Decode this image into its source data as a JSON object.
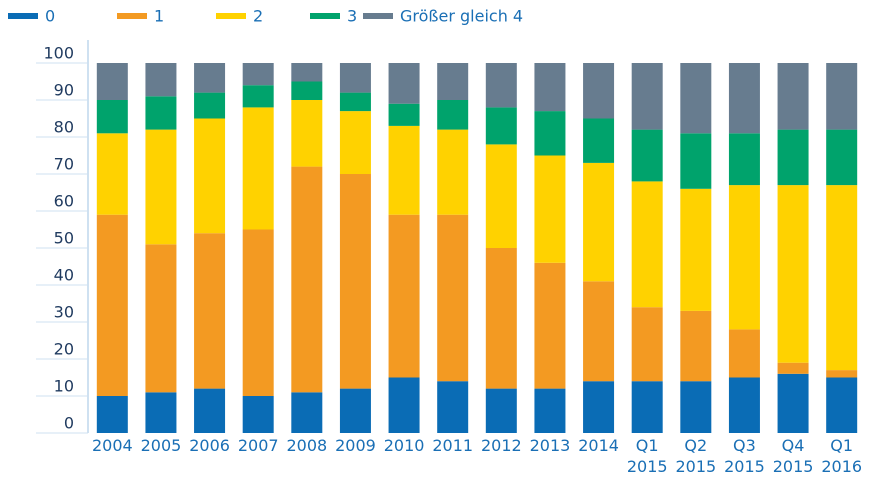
{
  "chart_data": {
    "type": "stacked_bar",
    "categories": [
      "2004",
      "2005",
      "2006",
      "2007",
      "2008",
      "2009",
      "2010",
      "2011",
      "2012",
      "2013",
      "2014",
      "Q1\n2015",
      "Q2\n2015",
      "Q3\n2015",
      "Q4\n2015",
      "Q1\n2016"
    ],
    "series": [
      {
        "name": "0",
        "color": "#0a6cb5",
        "values": [
          10,
          11,
          12,
          10,
          11,
          12,
          15,
          14,
          12,
          12,
          14,
          14,
          14,
          15,
          16,
          15
        ]
      },
      {
        "name": "1",
        "color": "#f39a22",
        "values": [
          49,
          40,
          42,
          45,
          61,
          58,
          44,
          45,
          38,
          34,
          27,
          20,
          19,
          13,
          3,
          2
        ]
      },
      {
        "name": "2",
        "color": "#ffd200",
        "values": [
          22,
          31,
          31,
          33,
          18,
          17,
          24,
          23,
          28,
          29,
          32,
          34,
          33,
          39,
          48,
          50
        ]
      },
      {
        "name": "3",
        "color": "#00a36c",
        "values": [
          9,
          9,
          7,
          6,
          5,
          5,
          6,
          8,
          10,
          12,
          12,
          14,
          15,
          14,
          15,
          15
        ]
      },
      {
        "name": "Größer gleich 4",
        "color": "#677c8f",
        "values": [
          10,
          9,
          8,
          6,
          5,
          8,
          11,
          10,
          12,
          13,
          15,
          18,
          19,
          19,
          18,
          18
        ]
      }
    ],
    "ylim": [
      0,
      100
    ],
    "yticks": [
      0,
      10,
      20,
      30,
      40,
      50,
      60,
      70,
      80,
      90,
      100
    ],
    "legend": "top-left"
  }
}
